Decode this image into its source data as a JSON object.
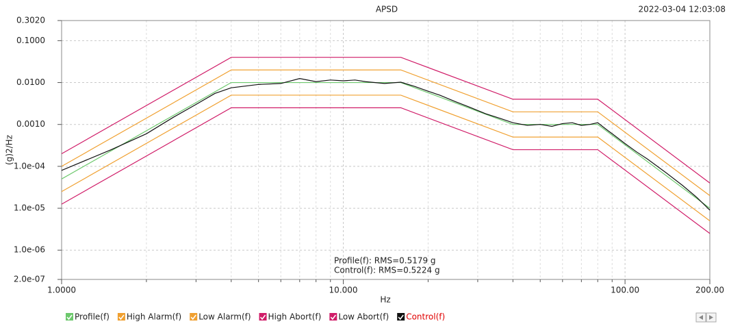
{
  "chart_data": {
    "type": "line",
    "title": "APSD",
    "timestamp": "2022-03-04 12:03:08",
    "x_label": "Hz",
    "y_label": "(g)2/Hz",
    "x_scale": "log",
    "y_scale": "log",
    "xlim": [
      1,
      200
    ],
    "ylim": [
      2e-07,
      0.302
    ],
    "xticks": [
      {
        "value": 1,
        "label": "1.0000"
      },
      {
        "value": 10,
        "label": "10.000"
      },
      {
        "value": 100,
        "label": "100.00"
      },
      {
        "value": 200,
        "label": "200.00"
      }
    ],
    "xminor": [
      2,
      3,
      4,
      5,
      6,
      7,
      8,
      9,
      20,
      30,
      40,
      50,
      60,
      70,
      80,
      90
    ],
    "yticks": [
      {
        "value": 2e-07,
        "label": "2.0e-07"
      },
      {
        "value": 1e-06,
        "label": "1.0e-06"
      },
      {
        "value": 1e-05,
        "label": "1.0e-05"
      },
      {
        "value": 0.0001,
        "label": "1.0e-04"
      },
      {
        "value": 0.001,
        "label": "0.0010"
      },
      {
        "value": 0.01,
        "label": "0.0100"
      },
      {
        "value": 0.1,
        "label": "0.1000"
      },
      {
        "value": 0.302,
        "label": "0.3020"
      }
    ],
    "grid": true,
    "x": [
      1,
      4,
      16,
      40,
      80,
      200
    ],
    "series": [
      {
        "name": "Profile(f)",
        "color": "#6cc86c",
        "values": [
          5e-05,
          0.01,
          0.01,
          0.001,
          0.001,
          1e-05
        ]
      },
      {
        "name": "High Alarm(f)",
        "color": "#f0a030",
        "values": [
          0.0001,
          0.02,
          0.02,
          0.002,
          0.002,
          2e-05
        ]
      },
      {
        "name": "Low Alarm(f)",
        "color": "#f0a030",
        "values": [
          2.5e-05,
          0.005,
          0.005,
          0.0005,
          0.0005,
          5e-06
        ]
      },
      {
        "name": "High Abort(f)",
        "color": "#d01c68",
        "values": [
          0.0002,
          0.04,
          0.04,
          0.004,
          0.004,
          4e-05
        ]
      },
      {
        "name": "Low Abort(f)",
        "color": "#d01c68",
        "values": [
          1.25e-05,
          0.0025,
          0.0025,
          0.00025,
          0.00025,
          2.5e-06
        ]
      },
      {
        "name": "Control(f)",
        "color": "#111111",
        "label_color": "#e00000",
        "x": [
          1,
          1.5,
          2,
          2.5,
          3,
          3.5,
          4,
          5,
          6,
          7,
          8,
          9,
          10,
          11,
          12,
          14,
          16,
          18,
          20,
          22,
          25,
          28,
          32,
          36,
          40,
          45,
          50,
          55,
          60,
          65,
          70,
          75,
          80,
          85,
          90,
          100,
          110,
          120,
          140,
          160,
          180,
          200
        ],
        "values": [
          8e-05,
          0.00025,
          0.0006,
          0.0015,
          0.003,
          0.0055,
          0.0075,
          0.009,
          0.0095,
          0.0125,
          0.0105,
          0.0115,
          0.011,
          0.0115,
          0.0105,
          0.0095,
          0.0102,
          0.008,
          0.0062,
          0.005,
          0.0035,
          0.0026,
          0.0018,
          0.0014,
          0.0011,
          0.00095,
          0.001,
          0.0009,
          0.00105,
          0.0011,
          0.00095,
          0.001,
          0.0011,
          0.0008,
          0.0006,
          0.00035,
          0.00022,
          0.00015,
          7e-05,
          3.5e-05,
          1.8e-05,
          9e-06
        ]
      }
    ],
    "annotations": [
      "Profile(f): RMS=0.5179 g",
      "Control(f): RMS=0.5224 g"
    ]
  }
}
